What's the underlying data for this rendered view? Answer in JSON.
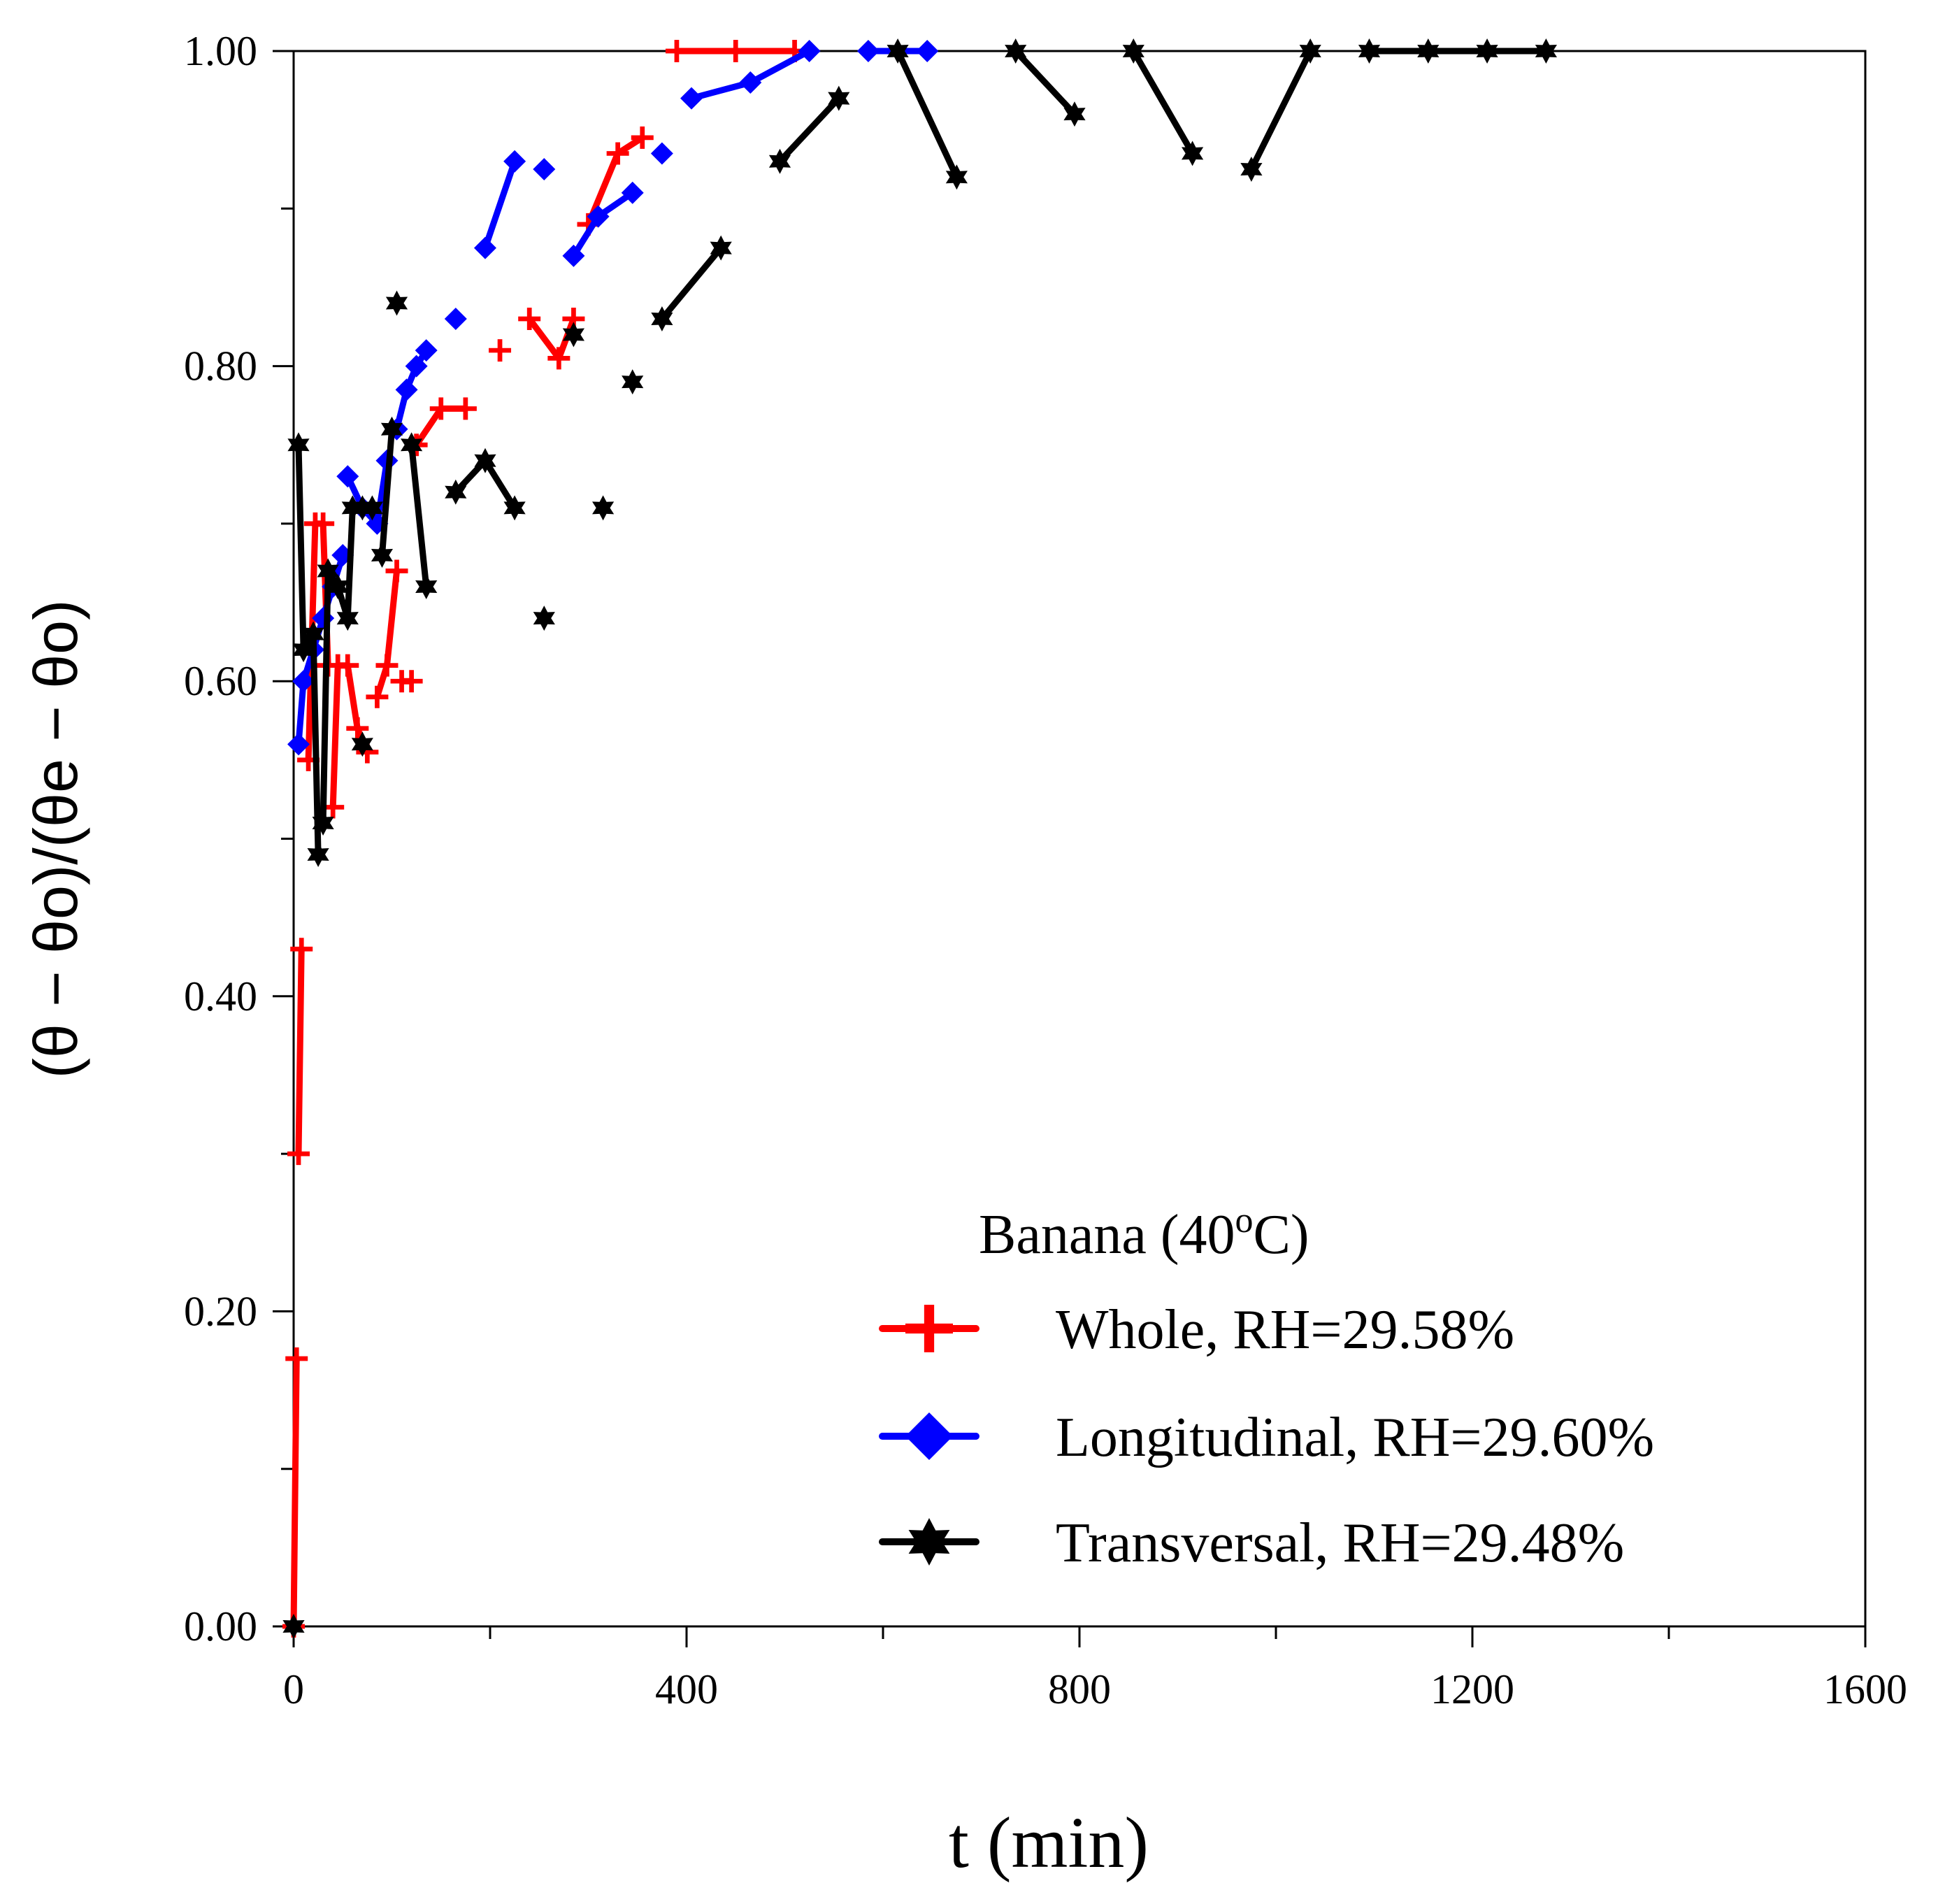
{
  "chart_data": {
    "type": "line",
    "title": "",
    "xlabel": "t (min)",
    "ylabel": "(θ − θo)/(θe − θo)",
    "xlim": [
      0,
      1600
    ],
    "ylim": [
      0,
      1
    ],
    "x_ticks": [
      0,
      400,
      800,
      1200,
      1600
    ],
    "x_tick_labels": [
      "0",
      "400",
      "800",
      "1200",
      "1600"
    ],
    "x_minor_ticks": [
      200,
      600,
      1000,
      1400
    ],
    "y_ticks": [
      0,
      0.2,
      0.4,
      0.6,
      0.8,
      1.0
    ],
    "y_tick_labels": [
      "0.00",
      "0.20",
      "0.40",
      "0.60",
      "0.80",
      "1.00"
    ],
    "y_minor_ticks": [
      0.1,
      0.3,
      0.5,
      0.7,
      0.9
    ],
    "grid": false,
    "legend": {
      "title_prefix": "Banana (40",
      "title_sup": "o",
      "title_suffix": "C)",
      "position": "bottom-right"
    },
    "series": [
      {
        "name": "Whole, RH=29.58%",
        "color": "#ff0000",
        "marker": "plus",
        "segments": [
          [
            [
              0,
              0.0
            ],
            [
              3,
              0.17
            ]
          ],
          [
            [
              5,
              0.3
            ],
            [
              8,
              0.43
            ]
          ],
          [
            [
              15,
              0.55
            ],
            [
              22,
              0.7
            ],
            [
              30,
              0.7
            ],
            [
              35,
              0.61
            ]
          ],
          [
            [
              40,
              0.52
            ],
            [
              45,
              0.61
            ],
            [
              55,
              0.61
            ],
            [
              65,
              0.57
            ],
            [
              75,
              0.555
            ]
          ],
          [
            [
              85,
              0.59
            ],
            [
              95,
              0.61
            ],
            [
              105,
              0.67
            ]
          ],
          [
            [
              110,
              0.6
            ],
            [
              120,
              0.6
            ]
          ],
          [
            [
              125,
              0.75
            ],
            [
              150,
              0.773
            ],
            [
              175,
              0.773
            ]
          ],
          [
            [
              210,
              0.81
            ]
          ],
          [
            [
              240,
              0.83
            ],
            [
              270,
              0.805
            ],
            [
              285,
              0.83
            ]
          ],
          [
            [
              300,
              0.89
            ],
            [
              330,
              0.935
            ],
            [
              355,
              0.945
            ]
          ],
          [
            [
              390,
              1.0
            ],
            [
              450,
              1.0
            ],
            [
              510,
              1.0
            ]
          ]
        ]
      },
      {
        "name": "Longitudinal, RH=29.60%",
        "color": "#0000ff",
        "marker": "diamond",
        "segments": [
          [
            [
              5,
              0.56
            ],
            [
              10,
              0.6
            ],
            [
              20,
              0.62
            ],
            [
              30,
              0.64
            ],
            [
              40,
              0.66
            ],
            [
              50,
              0.68
            ]
          ],
          [
            [
              55,
              0.73
            ],
            [
              70,
              0.71
            ],
            [
              85,
              0.7
            ],
            [
              95,
              0.74
            ]
          ],
          [
            [
              105,
              0.76
            ],
            [
              115,
              0.785
            ],
            [
              125,
              0.8
            ],
            [
              135,
              0.81
            ]
          ],
          [
            [
              165,
              0.83
            ]
          ],
          [
            [
              195,
              0.875
            ],
            [
              225,
              0.93
            ]
          ],
          [
            [
              255,
              0.925
            ]
          ],
          [
            [
              285,
              0.87
            ],
            [
              310,
              0.895
            ],
            [
              345,
              0.91
            ]
          ],
          [
            [
              375,
              0.935
            ]
          ],
          [
            [
              405,
              0.97
            ],
            [
              465,
              0.98
            ],
            [
              525,
              1.0
            ]
          ],
          [
            [
              585,
              1.0
            ],
            [
              645,
              1.0
            ]
          ]
        ]
      },
      {
        "name": "Transversal, RH=29.48%",
        "color": "#000000",
        "marker": "star",
        "segments": [
          [
            [
              0,
              0.0
            ]
          ],
          [
            [
              5,
              0.75
            ],
            [
              10,
              0.62
            ],
            [
              20,
              0.63
            ],
            [
              25,
              0.49
            ]
          ],
          [
            [
              30,
              0.51
            ],
            [
              35,
              0.67
            ],
            [
              45,
              0.66
            ],
            [
              55,
              0.64
            ],
            [
              60,
              0.71
            ],
            [
              70,
              0.71
            ],
            [
              80,
              0.71
            ]
          ],
          [
            [
              70,
              0.56
            ]
          ],
          [
            [
              90,
              0.68
            ],
            [
              100,
              0.76
            ]
          ],
          [
            [
              105,
              0.84
            ]
          ],
          [
            [
              120,
              0.75
            ],
            [
              135,
              0.66
            ]
          ],
          [
            [
              165,
              0.72
            ],
            [
              195,
              0.74
            ],
            [
              225,
              0.71
            ]
          ],
          [
            [
              255,
              0.64
            ]
          ],
          [
            [
              285,
              0.82
            ]
          ],
          [
            [
              315,
              0.71
            ]
          ],
          [
            [
              345,
              0.79
            ]
          ],
          [
            [
              375,
              0.83
            ],
            [
              435,
              0.875
            ]
          ],
          [
            [
              495,
              0.93
            ],
            [
              555,
              0.97
            ]
          ],
          [
            [
              615,
              1.0
            ],
            [
              675,
              0.92
            ]
          ],
          [
            [
              735,
              1.0
            ],
            [
              795,
              0.96
            ]
          ],
          [
            [
              855,
              1.0
            ],
            [
              915,
              0.935
            ]
          ],
          [
            [
              975,
              0.925
            ],
            [
              1035,
              1.0
            ]
          ],
          [
            [
              1095,
              1.0
            ],
            [
              1155,
              1.0
            ],
            [
              1215,
              1.0
            ],
            [
              1275,
              1.0
            ]
          ]
        ]
      }
    ]
  }
}
